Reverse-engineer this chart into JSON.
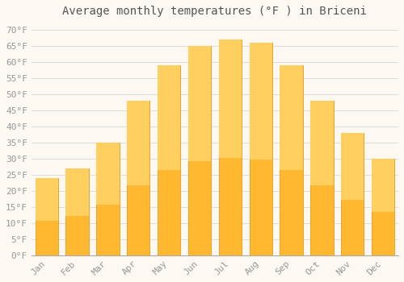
{
  "title": "Average monthly temperatures (°F ) in Briceni",
  "months": [
    "Jan",
    "Feb",
    "Mar",
    "Apr",
    "May",
    "Jun",
    "Jul",
    "Aug",
    "Sep",
    "Oct",
    "Nov",
    "Dec"
  ],
  "values": [
    24,
    27,
    35,
    48,
    59,
    65,
    67,
    66,
    59,
    48,
    38,
    30
  ],
  "bar_color_top": "#FFA500",
  "bar_color_bottom": "#FFB830",
  "bar_edge_color": "#E89000",
  "background_color": "#FDF8F2",
  "grid_color": "#DDDDDD",
  "ytick_labels": [
    "0°F",
    "5°F",
    "10°F",
    "15°F",
    "20°F",
    "25°F",
    "30°F",
    "35°F",
    "40°F",
    "45°F",
    "50°F",
    "55°F",
    "60°F",
    "65°F",
    "70°F"
  ],
  "ytick_values": [
    0,
    5,
    10,
    15,
    20,
    25,
    30,
    35,
    40,
    45,
    50,
    55,
    60,
    65,
    70
  ],
  "ylim": [
    0,
    72
  ],
  "title_fontsize": 10,
  "tick_fontsize": 8,
  "label_color": "#999999",
  "title_color": "#555555",
  "font_family": "monospace",
  "bar_width": 0.75
}
